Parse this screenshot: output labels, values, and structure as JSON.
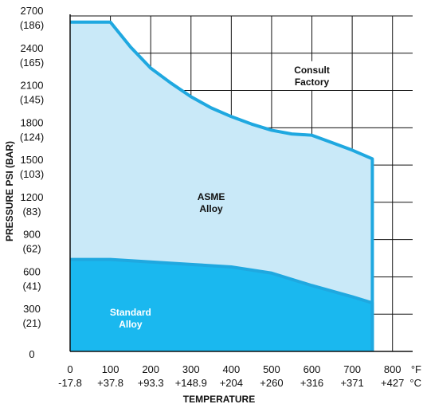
{
  "chart_data": {
    "type": "area",
    "ylabel": "PRESSURE PSI (BAR)",
    "xlabel": "TEMPERATURE",
    "x_unit_f": "°F",
    "x_unit_c": "°C",
    "xlim": [
      0,
      850
    ],
    "ylim": [
      0,
      2700
    ],
    "x_ticks": [
      {
        "f": "0",
        "c": "-17.8",
        "value": 0
      },
      {
        "f": "100",
        "c": "+37.8",
        "value": 100
      },
      {
        "f": "200",
        "c": "+93.3",
        "value": 200
      },
      {
        "f": "300",
        "c": "+148.9",
        "value": 300
      },
      {
        "f": "400",
        "c": "+204",
        "value": 400
      },
      {
        "f": "500",
        "c": "+260",
        "value": 500
      },
      {
        "f": "600",
        "c": "+316",
        "value": 600
      },
      {
        "f": "700",
        "c": "+371",
        "value": 700
      },
      {
        "f": "800",
        "c": "+427",
        "value": 800
      }
    ],
    "y_ticks": [
      {
        "psi": "2700",
        "bar": "(186)",
        "value": 2700
      },
      {
        "psi": "2400",
        "bar": "(165)",
        "value": 2400
      },
      {
        "psi": "2100",
        "bar": "(145)",
        "value": 2100
      },
      {
        "psi": "1800",
        "bar": "(124)",
        "value": 1800
      },
      {
        "psi": "1500",
        "bar": "(103)",
        "value": 1500
      },
      {
        "psi": "1200",
        "bar": "(83)",
        "value": 1200
      },
      {
        "psi": "900",
        "bar": "(62)",
        "value": 900
      },
      {
        "psi": "600",
        "bar": "(41)",
        "value": 600
      },
      {
        "psi": "300",
        "bar": "(21)",
        "value": 300
      },
      {
        "psi": "0",
        "bar": "",
        "value": 0
      }
    ],
    "series": [
      {
        "label_lines": [
          "ASME",
          "Alloy"
        ],
        "x": [
          0,
          100,
          150,
          200,
          250,
          300,
          350,
          400,
          450,
          500,
          550,
          600,
          650,
          700,
          750,
          750
        ],
        "y": [
          2650,
          2650,
          2450,
          2280,
          2160,
          2050,
          1960,
          1890,
          1830,
          1780,
          1750,
          1740,
          1680,
          1620,
          1550,
          0
        ],
        "fill": "#c9e9f8",
        "line": "#1fa8e0"
      },
      {
        "label_lines": [
          "Standard",
          "Alloy"
        ],
        "x": [
          0,
          100,
          200,
          300,
          400,
          500,
          600,
          700,
          750,
          750
        ],
        "y": [
          740,
          740,
          720,
          700,
          680,
          630,
          530,
          440,
          390,
          0
        ],
        "fill": "#1ab8ef",
        "line": "#1fa8e0"
      }
    ],
    "annotation_lines": [
      "Consult",
      "Factory"
    ],
    "grid": true,
    "colors": {
      "grid": "#111111",
      "standard_label": "#ffffff",
      "asme_label": "#111111"
    }
  }
}
